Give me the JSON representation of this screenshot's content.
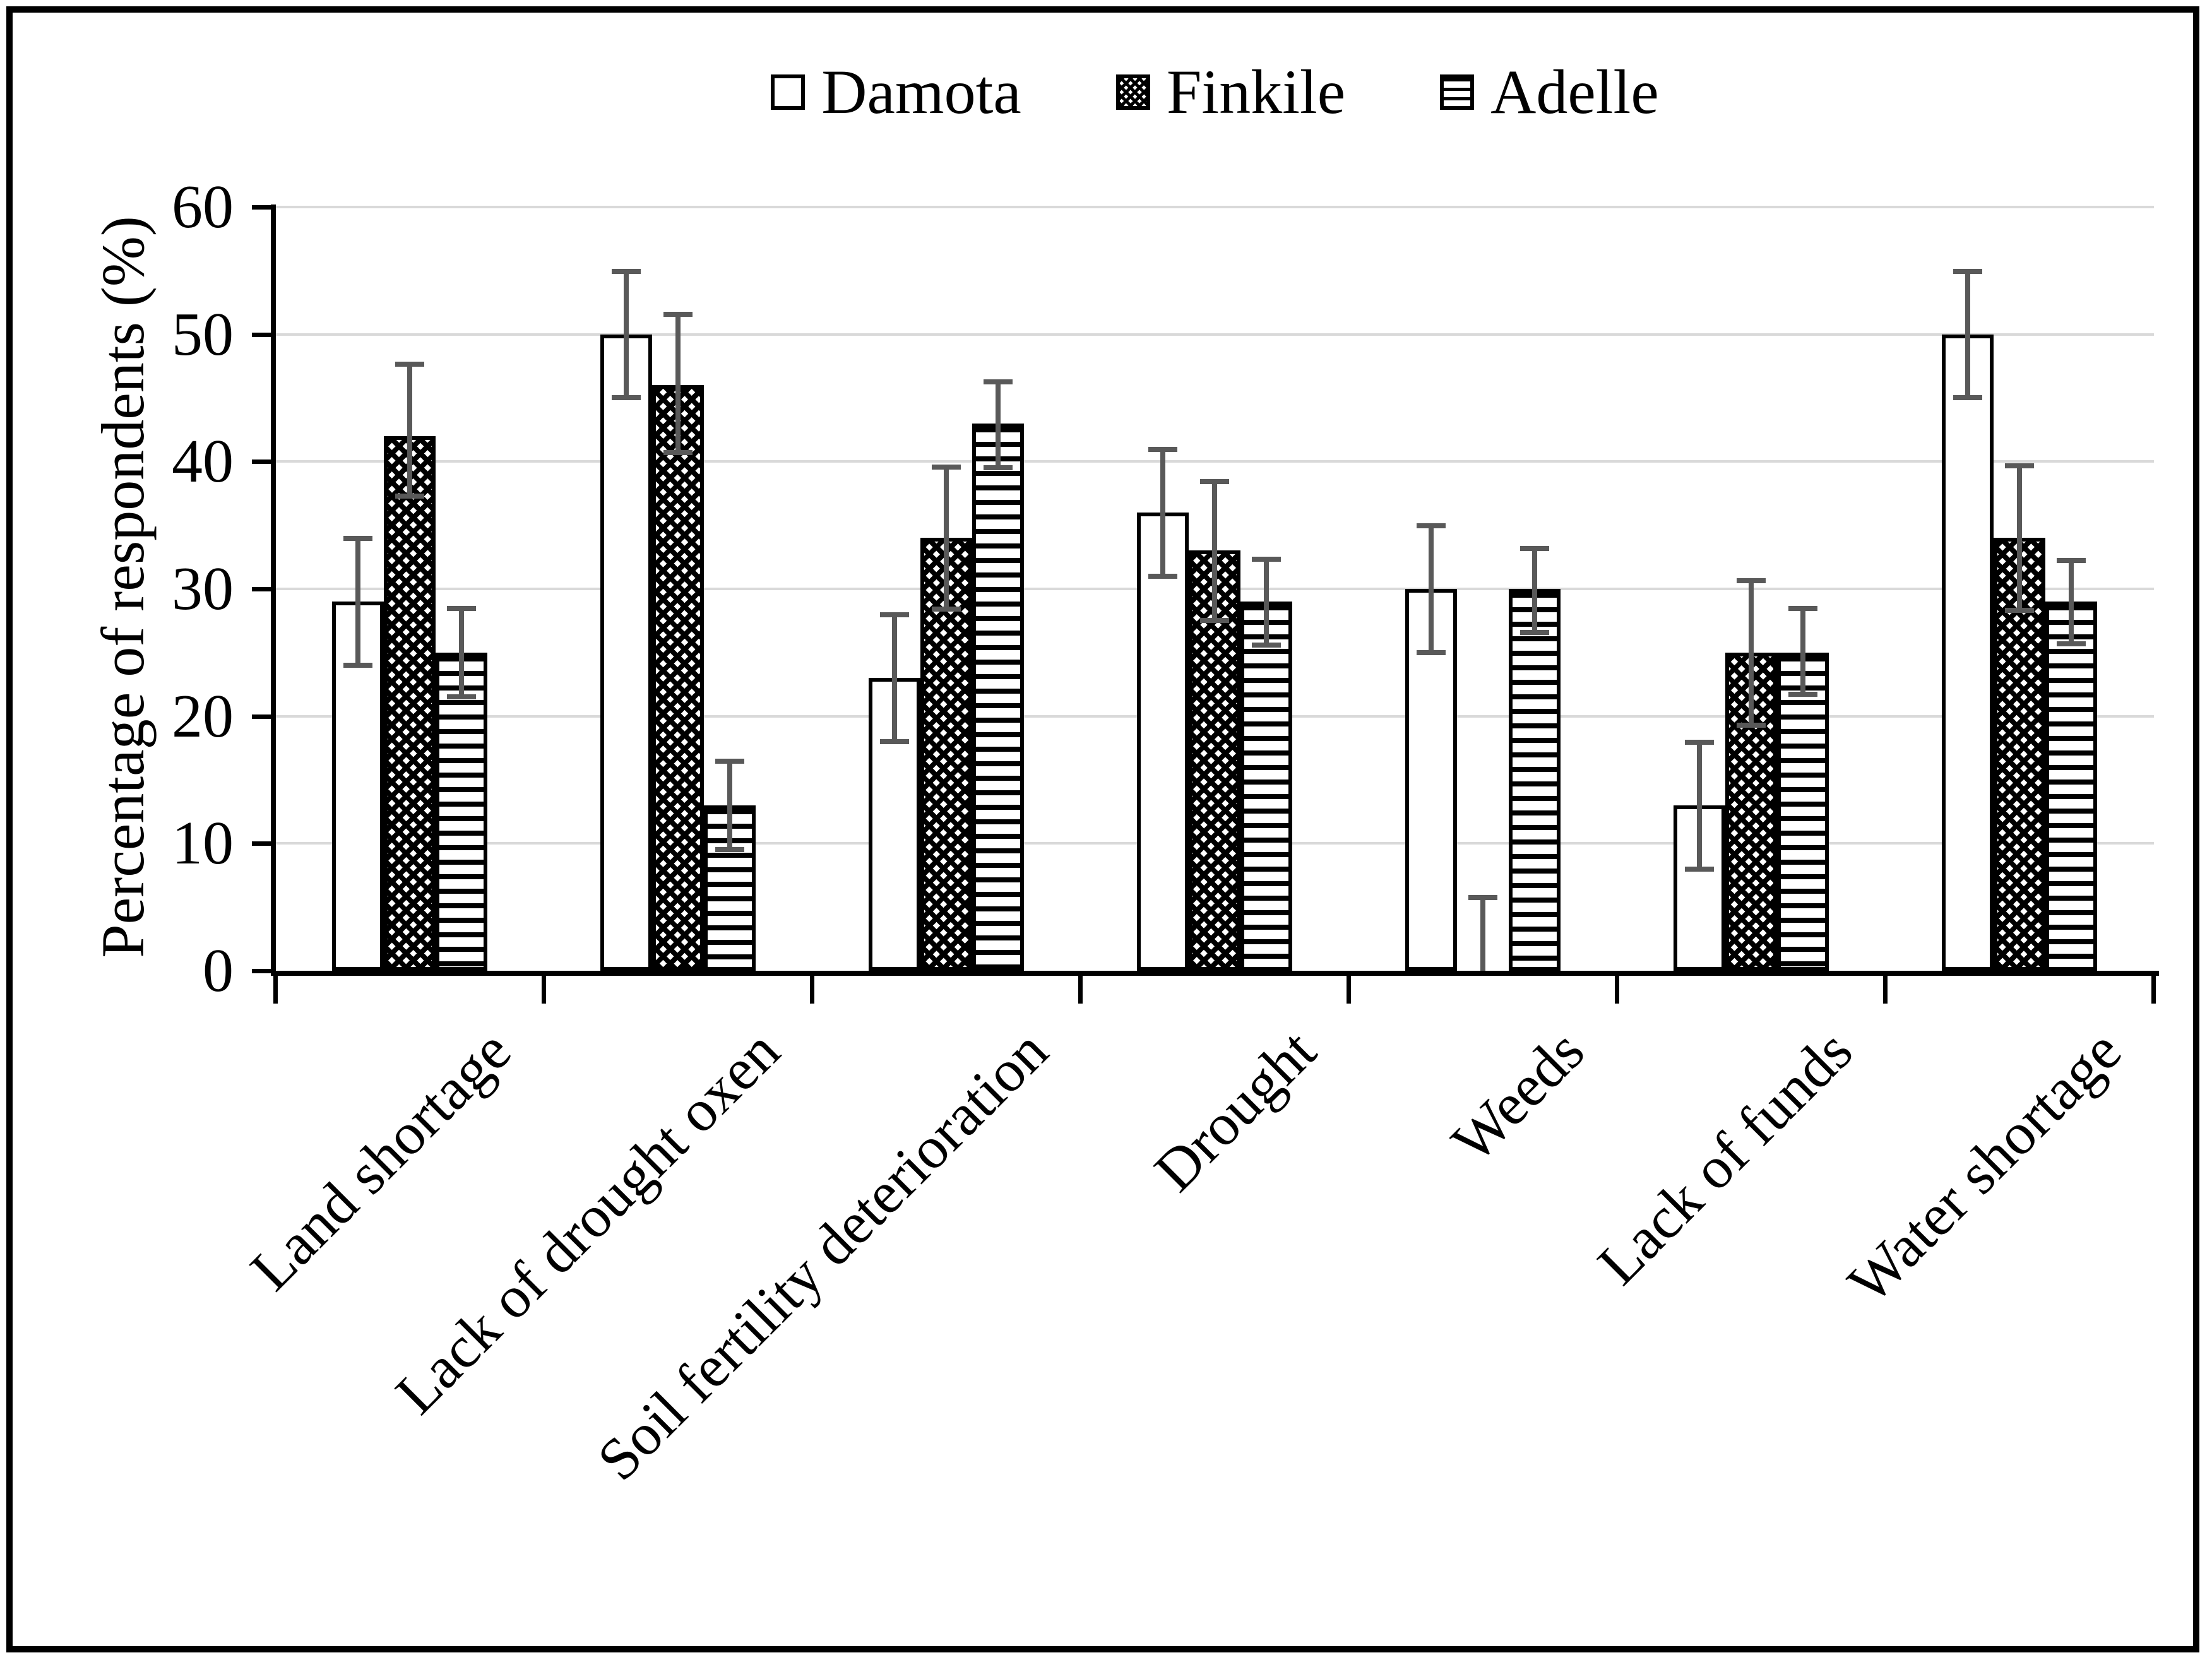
{
  "chart_data": {
    "type": "bar",
    "title": "",
    "xlabel": "",
    "ylabel": "Percentage of respondents  (%)",
    "ylim": [
      0,
      60
    ],
    "yticks": [
      0,
      10,
      20,
      30,
      40,
      50,
      60
    ],
    "grid": true,
    "legend_position": "top",
    "categories": [
      "Land shortage",
      "Lack of drought oxen",
      "Soil fertility deterioration",
      "Drought",
      "Weeds",
      "Lack of funds",
      "Water shortage"
    ],
    "series": [
      {
        "name": "Damota",
        "pattern": "plain-white",
        "values": [
          29,
          50,
          23,
          36,
          30,
          13,
          50
        ],
        "err_up": [
          5,
          5,
          5,
          5,
          5,
          5,
          5
        ],
        "err_down": [
          5,
          5,
          5,
          5,
          5,
          5,
          5
        ]
      },
      {
        "name": "Finkile",
        "pattern": "diamond-checker",
        "values": [
          42,
          46,
          34,
          33,
          0,
          25,
          34
        ],
        "err_up": [
          5.7,
          5.6,
          5.6,
          5.5,
          5.8,
          5.7,
          5.7
        ],
        "err_down": [
          4.7,
          5.3,
          5.6,
          5.5,
          0,
          5.7,
          5.7
        ]
      },
      {
        "name": "Adelle",
        "pattern": "horizontal-stripes",
        "values": [
          25,
          13,
          43,
          29,
          30,
          25,
          29
        ],
        "err_up": [
          3.5,
          3.5,
          3.3,
          3.4,
          3.2,
          3.5,
          3.3
        ],
        "err_down": [
          3.5,
          3.5,
          3.5,
          3.4,
          3.4,
          3.3,
          3.3
        ]
      }
    ],
    "colors": {
      "bar_outline": "#000000",
      "error_bar": "#595959",
      "gridline": "#d9d9d9",
      "axis": "#000000",
      "frame": "#000000",
      "background": "#ffffff"
    }
  }
}
